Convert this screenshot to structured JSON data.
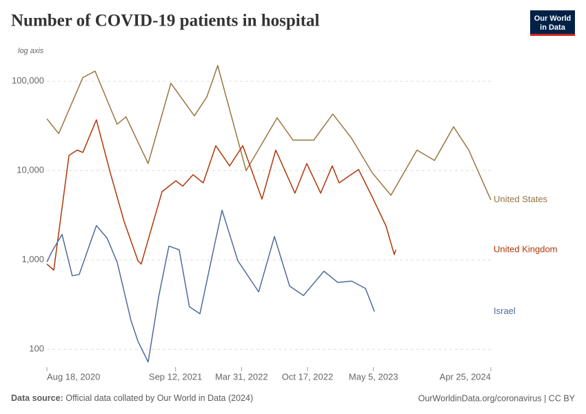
{
  "chart_data": {
    "type": "line",
    "title": "Number of COVID-19 patients in hospital",
    "axis_note": "log axis",
    "logo": [
      "Our World",
      "in Data"
    ],
    "source_label": "Data source:",
    "source": "Official data collated by Our World in Data (2024)",
    "footer_right": "OurWorldinData.org/coronavirus | CC BY",
    "log_scale": true,
    "grid": true,
    "xlim": [
      "2020-08-18",
      "2024-04-25"
    ],
    "xticks": [
      {
        "value": "2020-08-18",
        "label": "Aug 18, 2020"
      },
      {
        "value": "2021-09-12",
        "label": "Sep 12, 2021"
      },
      {
        "value": "2022-03-31",
        "label": "Mar 31, 2022"
      },
      {
        "value": "2022-10-17",
        "label": "Oct 17, 2022"
      },
      {
        "value": "2023-05-05",
        "label": "May 5, 2023"
      },
      {
        "value": "2024-04-25",
        "label": "Apr 25, 2024"
      }
    ],
    "ylim": [
      60,
      150000
    ],
    "yticks": [
      100,
      {
        "value": 1000,
        "label": "1,000"
      },
      {
        "value": 10000,
        "label": "10,000"
      },
      {
        "value": 100000,
        "label": "100,000"
      }
    ],
    "series": [
      {
        "name": "United States",
        "color": "#9a7440",
        "x": [
          "2020-08-18",
          "2020-09-23",
          "2020-12-05",
          "2021-01-11",
          "2021-03-19",
          "2021-04-15",
          "2021-06-21",
          "2021-08-29",
          "2021-11-08",
          "2021-12-16",
          "2022-01-18",
          "2022-04-14",
          "2022-07-17",
          "2022-09-03",
          "2022-11-05",
          "2023-01-02",
          "2023-02-28",
          "2023-05-01",
          "2023-06-27",
          "2023-09-14",
          "2023-11-06",
          "2024-01-03",
          "2024-02-18",
          "2024-04-25"
        ],
        "values": [
          38000,
          26000,
          110000,
          130000,
          33000,
          40000,
          12000,
          95000,
          41000,
          67000,
          150000,
          10000,
          39000,
          22000,
          22000,
          43000,
          23000,
          9500,
          5300,
          17000,
          13000,
          31000,
          17000,
          4700
        ]
      },
      {
        "name": "United Kingdom",
        "color": "#b13507",
        "x": [
          "2020-08-18",
          "2020-09-08",
          "2020-10-24",
          "2020-11-18",
          "2020-12-05",
          "2021-01-15",
          "2021-02-26",
          "2021-04-09",
          "2021-05-21",
          "2021-05-31",
          "2021-08-02",
          "2021-09-13",
          "2021-10-04",
          "2021-11-04",
          "2021-12-05",
          "2022-01-12",
          "2022-02-23",
          "2022-04-04",
          "2022-06-01",
          "2022-07-13",
          "2022-09-09",
          "2022-10-15",
          "2022-11-26",
          "2022-12-31",
          "2023-01-21",
          "2023-03-21",
          "2023-05-01",
          "2023-06-12",
          "2023-07-07",
          "2023-07-12"
        ],
        "values": [
          900,
          770,
          14800,
          17000,
          16000,
          37000,
          9500,
          2700,
          980,
          900,
          5800,
          7700,
          6700,
          9000,
          7300,
          19000,
          11300,
          19000,
          4800,
          17000,
          5600,
          12000,
          5600,
          11300,
          7300,
          10300,
          5100,
          2400,
          1150,
          1300
        ]
      },
      {
        "name": "Israel",
        "color": "#4c6a9c",
        "x": [
          "2020-08-18",
          "2020-09-02",
          "2020-10-03",
          "2020-11-03",
          "2020-11-24",
          "2021-01-15",
          "2021-02-16",
          "2021-03-19",
          "2021-04-30",
          "2021-05-21",
          "2021-06-21",
          "2021-07-23",
          "2021-08-23",
          "2021-09-23",
          "2021-10-24",
          "2021-11-25",
          "2022-01-06",
          "2022-01-31",
          "2022-03-20",
          "2022-05-22",
          "2022-07-09",
          "2022-08-24",
          "2022-10-05",
          "2022-12-06",
          "2023-01-17",
          "2023-02-28",
          "2023-04-11",
          "2023-05-08"
        ],
        "values": [
          950,
          1240,
          1930,
          665,
          690,
          2430,
          1770,
          950,
          210,
          123,
          72,
          390,
          1430,
          1300,
          300,
          250,
          1350,
          3600,
          980,
          440,
          1830,
          510,
          400,
          750,
          560,
          580,
          480,
          265
        ]
      }
    ]
  }
}
